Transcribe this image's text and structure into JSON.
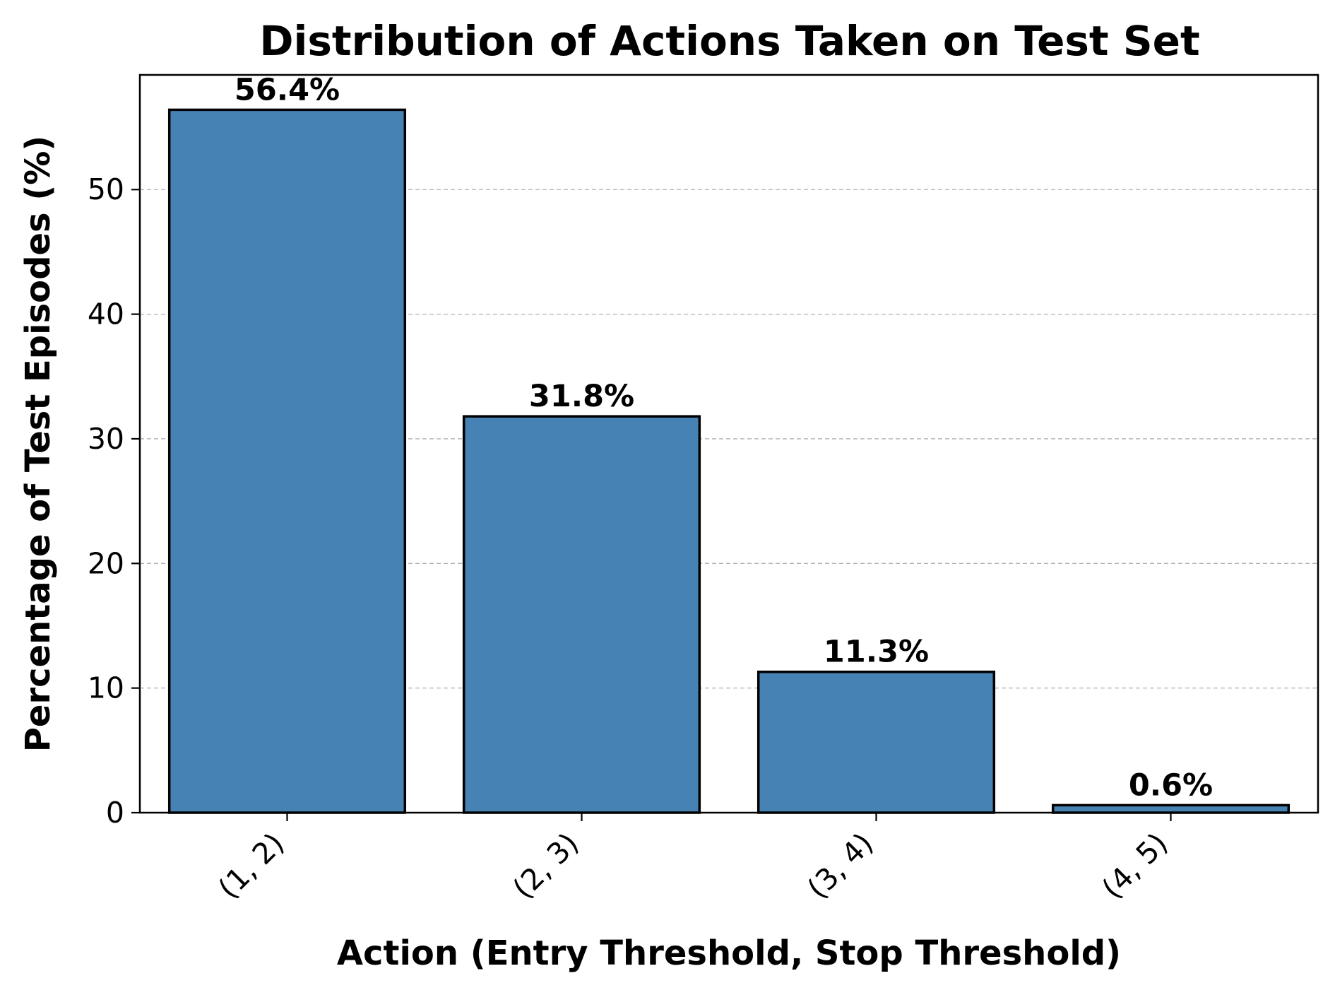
{
  "chart_data": {
    "type": "bar",
    "title": "Distribution of Actions Taken on Test Set",
    "xlabel": "Action (Entry Threshold, Stop Threshold)",
    "ylabel": "Percentage of Test Episodes (%)",
    "categories": [
      "(1, 2)",
      "(2, 3)",
      "(3, 4)",
      "(4, 5)"
    ],
    "values": [
      56.4,
      31.8,
      11.3,
      0.6
    ],
    "data_labels": [
      "56.4%",
      "31.8%",
      "11.3%",
      "0.6%"
    ],
    "ylim": [
      0,
      59.2
    ],
    "yticks": [
      0,
      10,
      20,
      30,
      40,
      50
    ],
    "grid": "horizontal dashed",
    "legend": "none",
    "bar_color": "#4682b4",
    "edge_color": "#000000",
    "grid_color": "#b0b0b0"
  }
}
